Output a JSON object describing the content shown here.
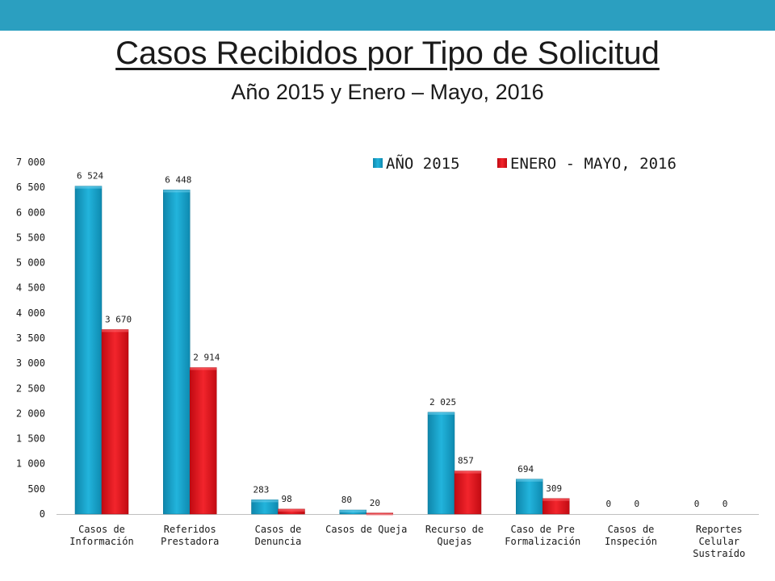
{
  "slide": {
    "title": "Casos Recibidos por Tipo de Solicitud",
    "subtitle": "Año 2015 y Enero – Mayo, 2016"
  },
  "colors": {
    "header_bar": "#2b9fc0",
    "series_2015": "#1aa4cc",
    "series_2016": "#e3121b"
  },
  "chart_data": {
    "type": "bar",
    "categories": [
      [
        "Casos de",
        "Información"
      ],
      [
        "Referidos",
        "Prestadora"
      ],
      [
        "Casos de",
        "Denuncia"
      ],
      [
        "Casos de Queja"
      ],
      [
        "Recurso de",
        "Quejas"
      ],
      [
        "Caso de Pre",
        "Formalización"
      ],
      [
        "Casos de",
        "Inspeción"
      ],
      [
        "Reportes",
        "Celular",
        "Sustraído"
      ]
    ],
    "series": [
      {
        "name": "AÑO 2015",
        "values": [
          6524,
          6448,
          283,
          80,
          2025,
          694,
          0,
          0
        ],
        "labels": [
          "6 524",
          "6 448",
          "283",
          "80",
          "2 025",
          "694",
          "0",
          "0"
        ]
      },
      {
        "name": "ENERO - MAYO, 2016",
        "values": [
          3670,
          2914,
          98,
          20,
          857,
          309,
          0,
          0
        ],
        "labels": [
          "3 670",
          "2 914",
          "98",
          "20",
          "857",
          "309",
          "0",
          "0"
        ]
      }
    ],
    "ylim": [
      0,
      7000
    ],
    "yticks": [
      0,
      500,
      1000,
      1500,
      2000,
      2500,
      3000,
      3500,
      4000,
      4500,
      5000,
      5500,
      6000,
      6500,
      7000
    ],
    "ytick_labels": [
      "0",
      "500",
      "1 000",
      "1 500",
      "2 000",
      "2 500",
      "3 000",
      "3 500",
      "4 000",
      "4 500",
      "5 000",
      "5 500",
      "6 000",
      "6 500",
      "7 000"
    ],
    "legend_position": "top-right",
    "grid": false
  }
}
